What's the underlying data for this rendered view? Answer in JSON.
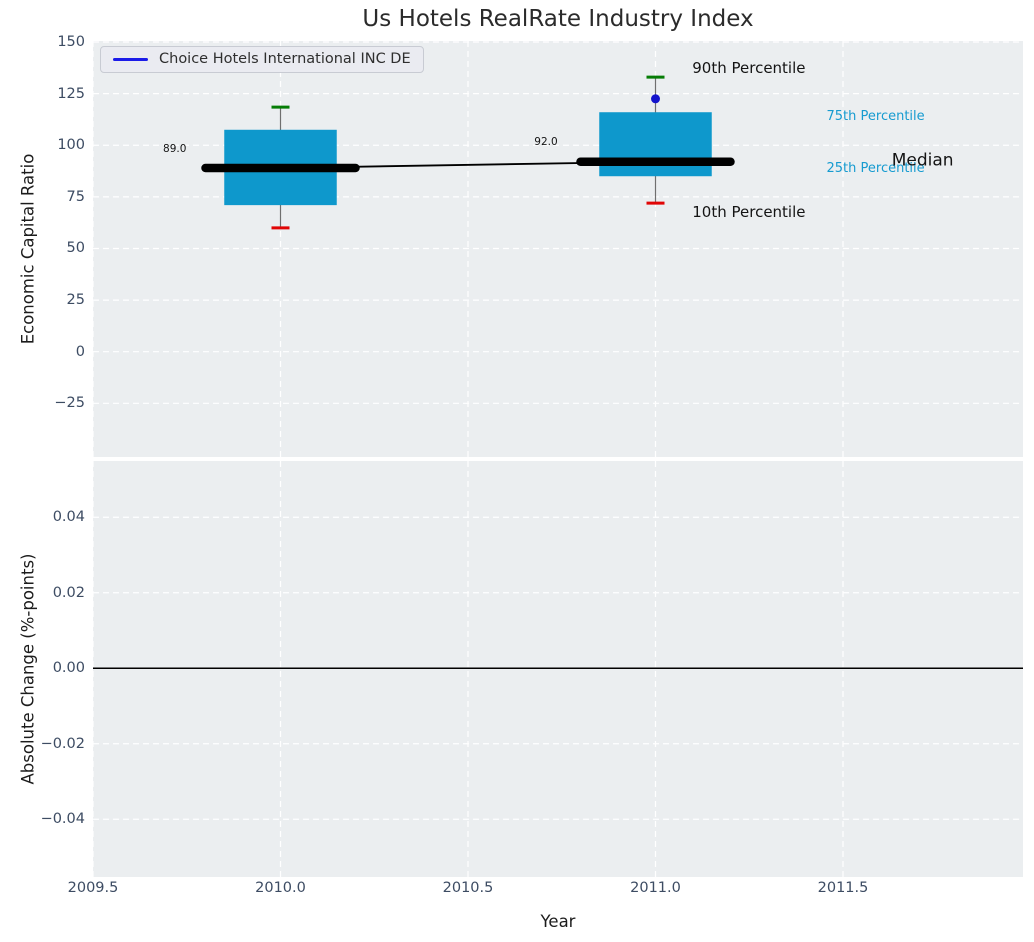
{
  "legend": {
    "label": "Choice Hotels International INC DE"
  },
  "colors": {
    "box_fill": "#0e98cc",
    "median": "#000000",
    "whisker": "#6f6f6f",
    "cap_top": "#067d06",
    "cap_bottom": "#e10505",
    "company_dot": "#1414cc",
    "legend_line": "#1b1be8",
    "panel_bg": "#ebeef0",
    "grid": "#ffffff",
    "tick_text": "#3d4c63",
    "dark_text": "#141414",
    "accent_text": "#169bd0",
    "zero_line": "#000000",
    "title_text": "#2b2b2b"
  },
  "chart_data": [
    {
      "type": "boxplot-line",
      "title": "Us Hotels RealRate Industry Index",
      "ylabel": "Economic Capital Ratio",
      "xlim": [
        2009.5,
        2011.98
      ],
      "ylim": [
        -51,
        150.5
      ],
      "grid": "dashed-white",
      "legend_position": "upper-left",
      "yticks": [
        {
          "v": 150,
          "label": "150"
        },
        {
          "v": 125,
          "label": "125"
        },
        {
          "v": 100,
          "label": "100"
        },
        {
          "v": 75,
          "label": "75"
        },
        {
          "v": 50,
          "label": "50"
        },
        {
          "v": 25,
          "label": "25"
        },
        {
          "v": 0,
          "label": "0"
        },
        {
          "v": -25,
          "label": "−25"
        }
      ],
      "xgrid": [
        2009.5,
        2010,
        2010.5,
        2011,
        2011.5
      ],
      "boxes": [
        {
          "year": 2010,
          "p10": 60,
          "p25": 71,
          "median": 89,
          "p75": 107.5,
          "p90": 118.5,
          "median_label": "89.0"
        },
        {
          "year": 2011,
          "p10": 72,
          "p25": 85,
          "median": 92,
          "p75": 116,
          "p90": 133,
          "median_label": "92.0"
        }
      ],
      "median_trend": {
        "x": [
          2010,
          2011
        ],
        "y": [
          89,
          92
        ]
      },
      "company_points": [
        {
          "x": 2011,
          "y": 122.5
        }
      ],
      "annotations": [
        {
          "text": "90th Percentile",
          "x": 2011.098,
          "y": 137.3,
          "size": 15,
          "color": "dark",
          "anchor": "start"
        },
        {
          "text": "10th Percentile",
          "x": 2011.098,
          "y": 67.8,
          "size": 15,
          "color": "dark",
          "anchor": "start"
        },
        {
          "text": "75th Percentile",
          "x": 2011.456,
          "y": 113.6,
          "size": 13,
          "color": "accent",
          "anchor": "start"
        },
        {
          "text": "25th Percentile",
          "x": 2011.456,
          "y": 88.6,
          "size": 13,
          "color": "accent",
          "anchor": "start"
        },
        {
          "text": "Median",
          "x": 2011.63,
          "y": 92.3,
          "size": 17,
          "color": "dark",
          "anchor": "start"
        },
        {
          "text": "89.0",
          "x": 2009.718,
          "y": 97.9,
          "size": 10.5,
          "color": "dark",
          "anchor": "middle"
        },
        {
          "text": "92.0",
          "x": 2010.708,
          "y": 101.3,
          "size": 10.5,
          "color": "dark",
          "anchor": "middle"
        }
      ]
    },
    {
      "type": "line",
      "ylabel": "Absolute Change (%-points)",
      "xlabel": "Year",
      "xlim": [
        2009.5,
        2011.98
      ],
      "ylim": [
        -0.0553,
        0.0549
      ],
      "grid": "dashed-white",
      "yticks": [
        {
          "v": 0.04,
          "label": "0.04"
        },
        {
          "v": 0.02,
          "label": "0.02"
        },
        {
          "v": 0,
          "label": "0.00"
        },
        {
          "v": -0.02,
          "label": "−0.02"
        },
        {
          "v": -0.04,
          "label": "−0.04"
        }
      ],
      "xticks": [
        {
          "v": 2009.5,
          "label": "2009.5"
        },
        {
          "v": 2010,
          "label": "2010.0"
        },
        {
          "v": 2010.5,
          "label": "2010.5"
        },
        {
          "v": 2011,
          "label": "2011.0"
        },
        {
          "v": 2011.5,
          "label": "2011.5"
        }
      ],
      "xgrid": [
        2009.5,
        2010,
        2010.5,
        2011,
        2011.5
      ],
      "zero_line": 0,
      "series": []
    }
  ]
}
